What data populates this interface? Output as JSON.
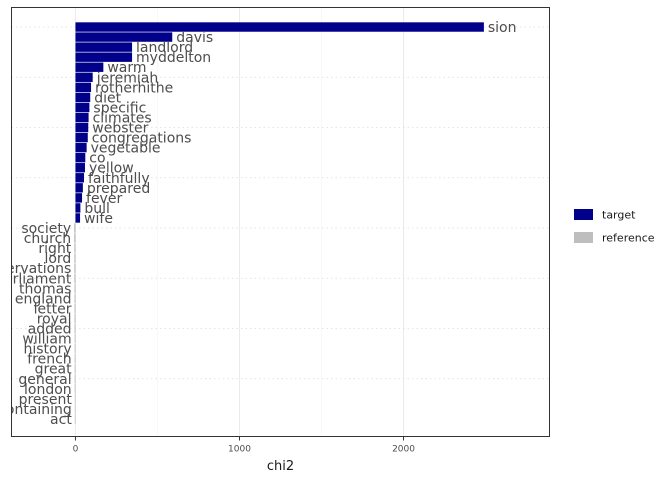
{
  "chart_data": {
    "type": "bar",
    "orientation": "horizontal",
    "xlabel": "chi2",
    "ylabel": "",
    "xlim": [
      -390,
      2890
    ],
    "xticks": [
      0,
      1000,
      2000
    ],
    "xtick_labels": [
      "0",
      "1000",
      "2000"
    ],
    "grid": true,
    "legend_position": "right",
    "colors": {
      "target": "#00008b",
      "reference": "#bebebe"
    },
    "legend": [
      {
        "key": "target",
        "label": "target"
      },
      {
        "key": "reference",
        "label": "reference"
      }
    ],
    "bars": [
      {
        "word": "sion",
        "value": 2490,
        "group": "target"
      },
      {
        "word": "davis",
        "value": 590,
        "group": "target"
      },
      {
        "word": "landlord",
        "value": 345,
        "group": "target"
      },
      {
        "word": "myddelton",
        "value": 345,
        "group": "target"
      },
      {
        "word": "warm",
        "value": 170,
        "group": "target"
      },
      {
        "word": "jeremiah",
        "value": 105,
        "group": "target"
      },
      {
        "word": "rotherhithe",
        "value": 95,
        "group": "target"
      },
      {
        "word": "diet",
        "value": 90,
        "group": "target"
      },
      {
        "word": "specific",
        "value": 85,
        "group": "target"
      },
      {
        "word": "climates",
        "value": 80,
        "group": "target"
      },
      {
        "word": "webster",
        "value": 78,
        "group": "target"
      },
      {
        "word": "congregations",
        "value": 75,
        "group": "target"
      },
      {
        "word": "vegetable",
        "value": 68,
        "group": "target"
      },
      {
        "word": "co",
        "value": 60,
        "group": "target"
      },
      {
        "word": "yellow",
        "value": 58,
        "group": "target"
      },
      {
        "word": "faithfully",
        "value": 52,
        "group": "target"
      },
      {
        "word": "prepared",
        "value": 45,
        "group": "target"
      },
      {
        "word": "fever",
        "value": 40,
        "group": "target"
      },
      {
        "word": "bull",
        "value": 30,
        "group": "target"
      },
      {
        "word": "wife",
        "value": 28,
        "group": "target"
      },
      {
        "word": "society",
        "value": -8,
        "group": "reference"
      },
      {
        "word": "church",
        "value": -8,
        "group": "reference"
      },
      {
        "word": "right",
        "value": -7,
        "group": "reference"
      },
      {
        "word": "lord",
        "value": -7,
        "group": "reference"
      },
      {
        "word": "observations",
        "value": -7,
        "group": "reference"
      },
      {
        "word": "parliament",
        "value": -7,
        "group": "reference"
      },
      {
        "word": "thomas",
        "value": -6,
        "group": "reference"
      },
      {
        "word": "england",
        "value": -6,
        "group": "reference"
      },
      {
        "word": "letter",
        "value": -6,
        "group": "reference"
      },
      {
        "word": "royal",
        "value": -6,
        "group": "reference"
      },
      {
        "word": "added",
        "value": -6,
        "group": "reference"
      },
      {
        "word": "william",
        "value": -5,
        "group": "reference"
      },
      {
        "word": "history",
        "value": -5,
        "group": "reference"
      },
      {
        "word": "french",
        "value": -5,
        "group": "reference"
      },
      {
        "word": "great",
        "value": -5,
        "group": "reference"
      },
      {
        "word": "general",
        "value": -5,
        "group": "reference"
      },
      {
        "word": "london",
        "value": -5,
        "group": "reference"
      },
      {
        "word": "present",
        "value": -4,
        "group": "reference"
      },
      {
        "word": "containing",
        "value": -4,
        "group": "reference"
      },
      {
        "word": "act",
        "value": -4,
        "group": "reference"
      }
    ]
  }
}
